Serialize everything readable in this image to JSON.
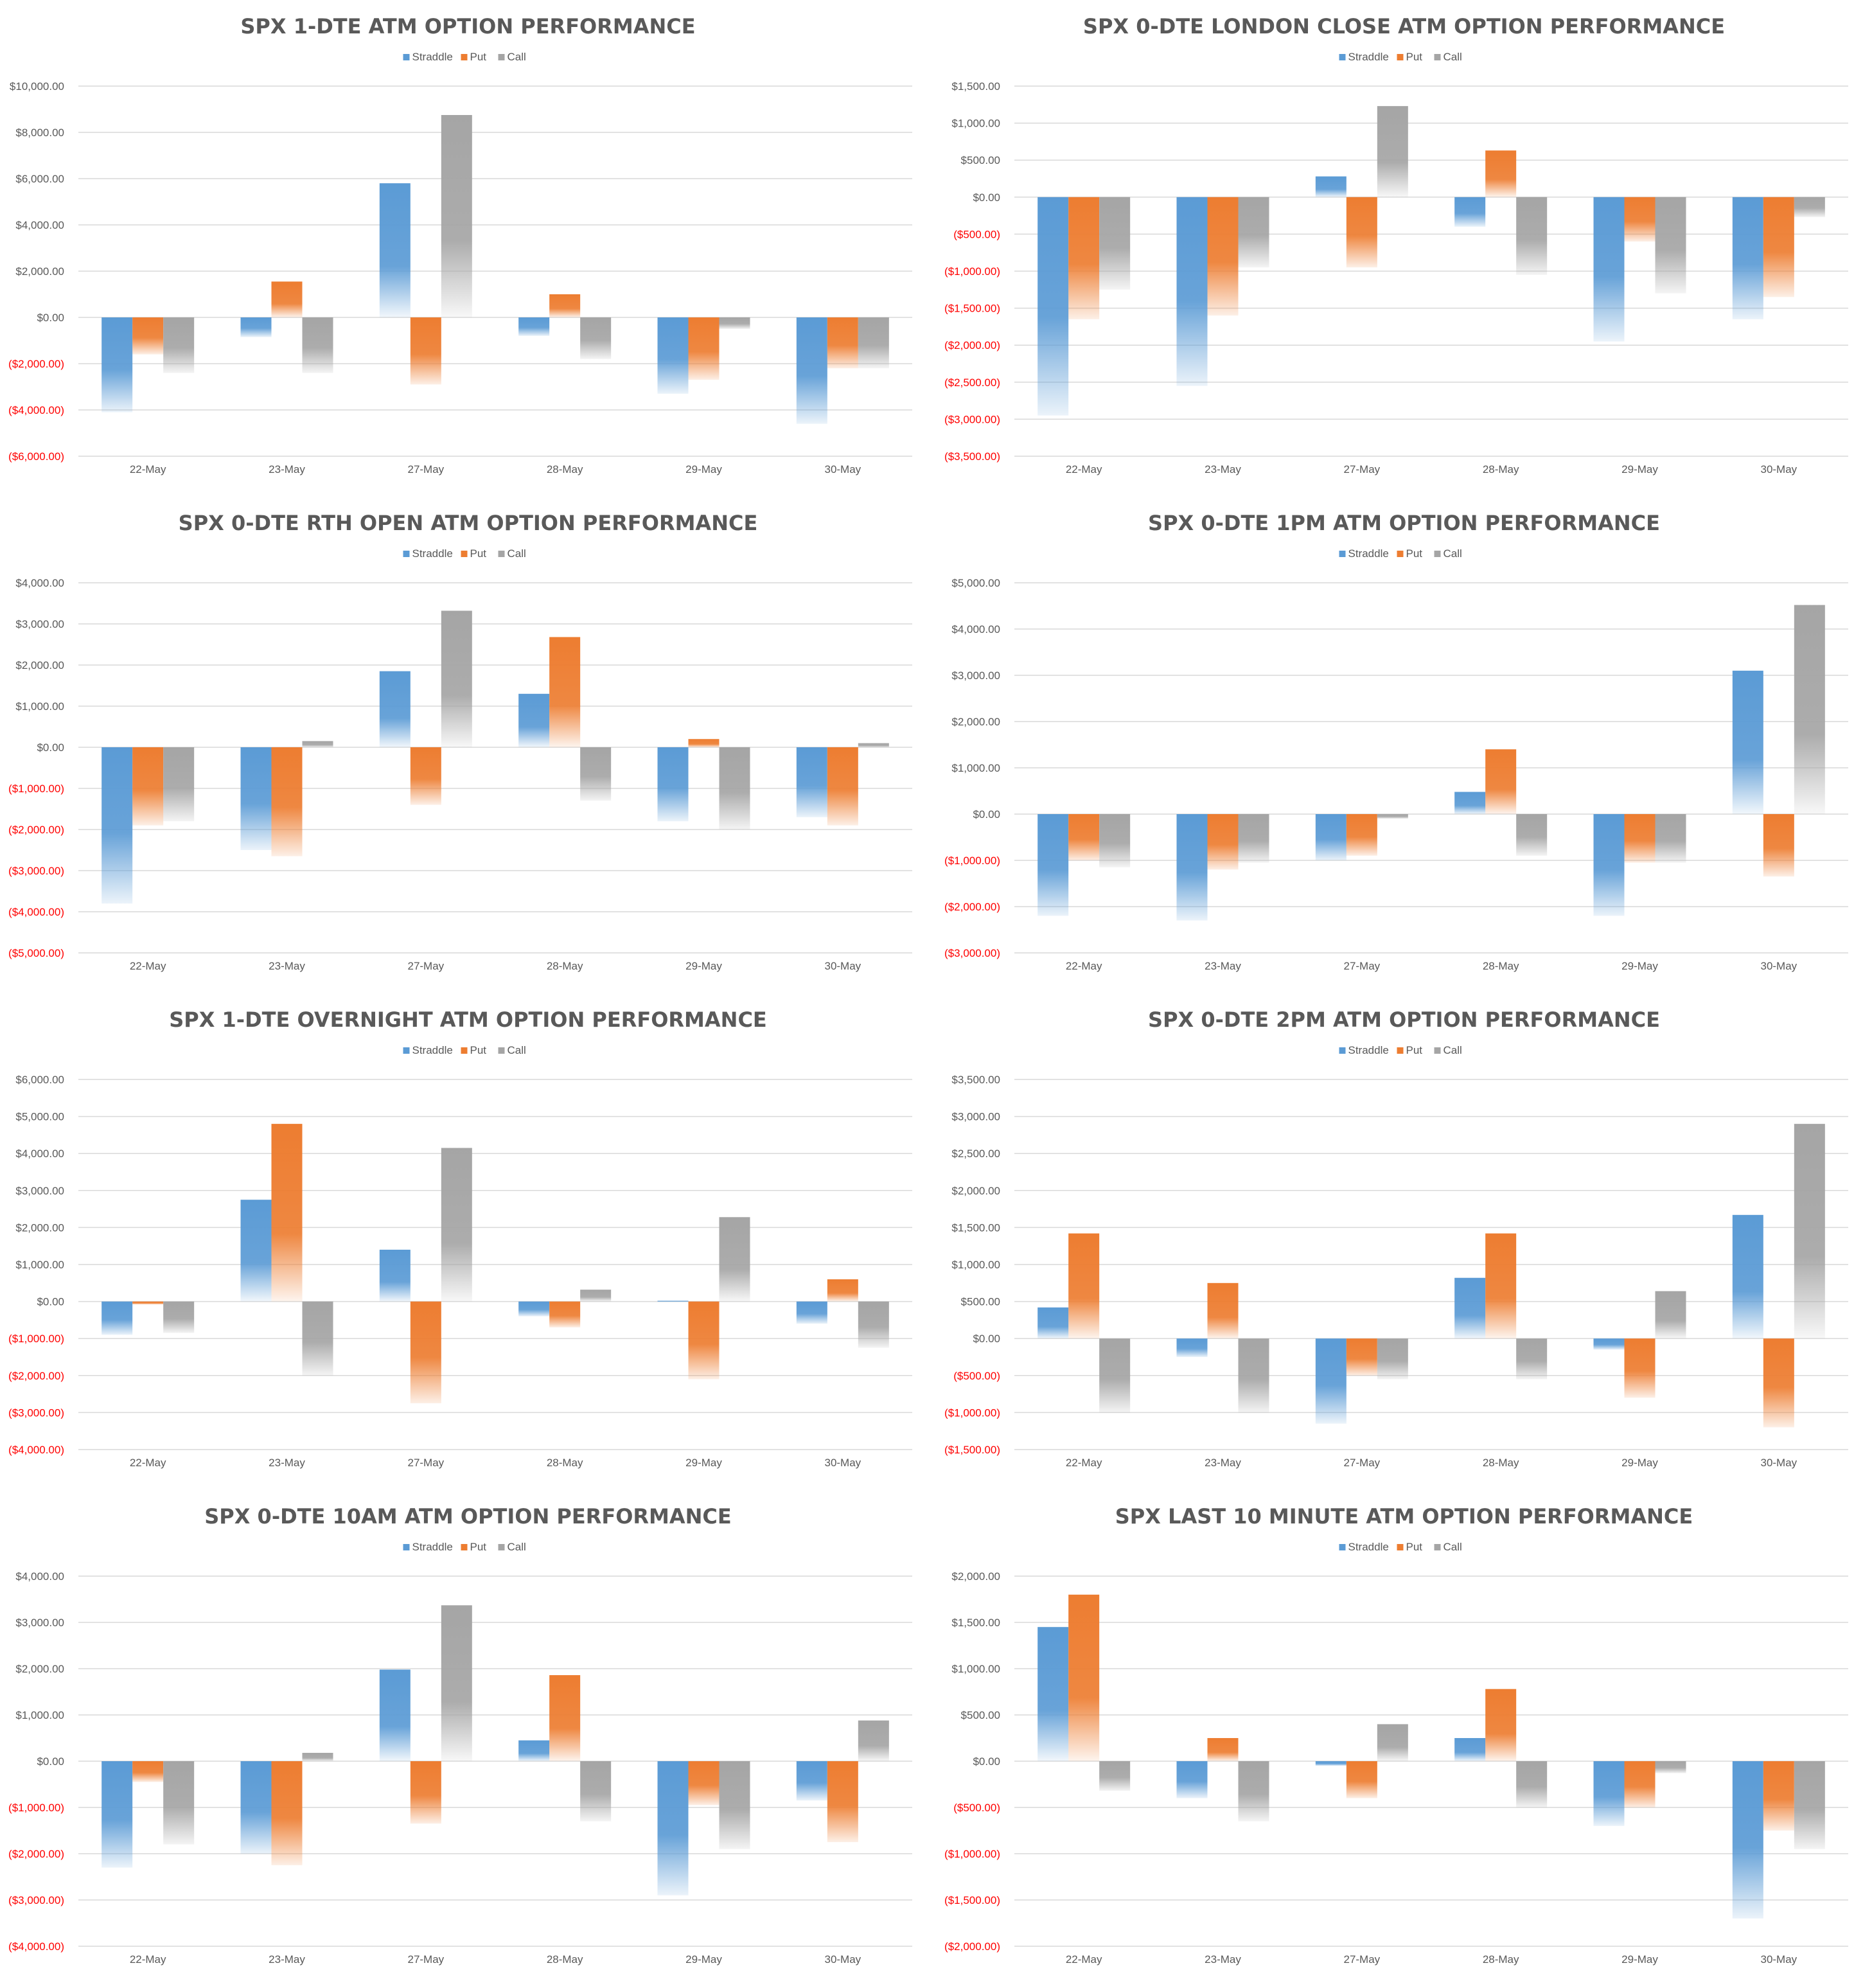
{
  "colors": {
    "straddle": "#5b9bd5",
    "put": "#ed7d31",
    "call": "#a5a5a5",
    "negative_label": "#ff0000",
    "positive_label": "#595959",
    "gridline": "#d9d9d9",
    "title": "#595959"
  },
  "chart_data": [
    {
      "type": "bar",
      "title": "SPX 1-DTE ATM OPTION PERFORMANCE",
      "categories": [
        "22-May",
        "23-May",
        "27-May",
        "28-May",
        "29-May",
        "30-May"
      ],
      "ylim": [
        -6000,
        10000
      ],
      "yticks": [
        -6000,
        -4000,
        -2000,
        0,
        2000,
        4000,
        6000,
        8000,
        10000
      ],
      "ytick_labels": [
        "($6,000.00)",
        "($4,000.00)",
        "($2,000.00)",
        "$0.00",
        "$2,000.00",
        "$4,000.00",
        "$6,000.00",
        "$8,000.00",
        "$10,000.00"
      ],
      "legend": [
        "Straddle",
        "Put",
        "Call"
      ],
      "legend_position": "top-center",
      "grid": true,
      "series": [
        {
          "name": "Straddle",
          "values": [
            -4100,
            -850,
            5800,
            -800,
            -3300,
            -4600
          ]
        },
        {
          "name": "Put",
          "values": [
            -1600,
            1550,
            -2900,
            1000,
            -2700,
            -2200
          ]
        },
        {
          "name": "Call",
          "values": [
            -2400,
            -2400,
            8750,
            -1800,
            -500,
            -2200
          ]
        }
      ]
    },
    {
      "type": "bar",
      "title": "SPX 0-DTE  LONDON CLOSE ATM OPTION PERFORMANCE",
      "categories": [
        "22-May",
        "23-May",
        "27-May",
        "28-May",
        "29-May",
        "30-May"
      ],
      "ylim": [
        -3500,
        1500
      ],
      "yticks": [
        -3500,
        -3000,
        -2500,
        -2000,
        -1500,
        -1000,
        -500,
        0,
        500,
        1000,
        1500
      ],
      "ytick_labels": [
        "($3,500.00)",
        "($3,000.00)",
        "($2,500.00)",
        "($2,000.00)",
        "($1,500.00)",
        "($1,000.00)",
        "($500.00)",
        "$0.00",
        "$500.00",
        "$1,000.00",
        "$1,500.00"
      ],
      "legend": [
        "Straddle",
        "Put",
        "Call"
      ],
      "legend_position": "top-center",
      "grid": true,
      "series": [
        {
          "name": "Straddle",
          "values": [
            -2950,
            -2550,
            280,
            -400,
            -1950,
            -1650
          ]
        },
        {
          "name": "Put",
          "values": [
            -1650,
            -1600,
            -950,
            630,
            -600,
            -1350
          ]
        },
        {
          "name": "Call",
          "values": [
            -1250,
            -950,
            1230,
            -1050,
            -1300,
            -270
          ]
        }
      ]
    },
    {
      "type": "bar",
      "title": "SPX 0-DTE RTH OPEN ATM OPTION PERFORMANCE",
      "categories": [
        "22-May",
        "23-May",
        "27-May",
        "28-May",
        "29-May",
        "30-May"
      ],
      "ylim": [
        -5000,
        4000
      ],
      "yticks": [
        -5000,
        -4000,
        -3000,
        -2000,
        -1000,
        0,
        1000,
        2000,
        3000,
        4000
      ],
      "ytick_labels": [
        "($5,000.00)",
        "($4,000.00)",
        "($3,000.00)",
        "($2,000.00)",
        "($1,000.00)",
        "$0.00",
        "$1,000.00",
        "$2,000.00",
        "$3,000.00",
        "$4,000.00"
      ],
      "legend": [
        "Straddle",
        "Put",
        "Call"
      ],
      "legend_position": "top-center",
      "grid": true,
      "series": [
        {
          "name": "Straddle",
          "values": [
            -3800,
            -2500,
            1850,
            1300,
            -1800,
            -1700
          ]
        },
        {
          "name": "Put",
          "values": [
            -1900,
            -2650,
            -1400,
            2680,
            200,
            -1900
          ]
        },
        {
          "name": "Call",
          "values": [
            -1800,
            150,
            3320,
            -1300,
            -2000,
            100
          ]
        }
      ]
    },
    {
      "type": "bar",
      "title": "SPX 0-DTE 1PM ATM OPTION PERFORMANCE",
      "categories": [
        "22-May",
        "23-May",
        "27-May",
        "28-May",
        "29-May",
        "30-May"
      ],
      "ylim": [
        -3000,
        5000
      ],
      "yticks": [
        -3000,
        -2000,
        -1000,
        0,
        1000,
        2000,
        3000,
        4000,
        5000
      ],
      "ytick_labels": [
        "($3,000.00)",
        "($2,000.00)",
        "($1,000.00)",
        "$0.00",
        "$1,000.00",
        "$2,000.00",
        "$3,000.00",
        "$4,000.00",
        "$5,000.00"
      ],
      "legend": [
        "Straddle",
        "Put",
        "Call"
      ],
      "legend_position": "top-center",
      "grid": true,
      "series": [
        {
          "name": "Straddle",
          "values": [
            -2200,
            -2300,
            -1000,
            480,
            -2200,
            3100
          ]
        },
        {
          "name": "Put",
          "values": [
            -1000,
            -1200,
            -900,
            1400,
            -1050,
            -1350
          ]
        },
        {
          "name": "Call",
          "values": [
            -1150,
            -1050,
            -100,
            -900,
            -1050,
            4520
          ]
        }
      ]
    },
    {
      "type": "bar",
      "title": "SPX 1-DTE OVERNIGHT ATM OPTION PERFORMANCE",
      "categories": [
        "22-May",
        "23-May",
        "27-May",
        "28-May",
        "29-May",
        "30-May"
      ],
      "ylim": [
        -4000,
        6000
      ],
      "yticks": [
        -4000,
        -3000,
        -2000,
        -1000,
        0,
        1000,
        2000,
        3000,
        4000,
        5000,
        6000
      ],
      "ytick_labels": [
        "($4,000.00)",
        "($3,000.00)",
        "($2,000.00)",
        "($1,000.00)",
        "$0.00",
        "$1,000.00",
        "$2,000.00",
        "$3,000.00",
        "$4,000.00",
        "$5,000.00",
        "$6,000.00"
      ],
      "legend": [
        "Straddle",
        "Put",
        "Call"
      ],
      "legend_position": "top-center",
      "grid": true,
      "series": [
        {
          "name": "Straddle",
          "values": [
            -900,
            2750,
            1400,
            -400,
            20,
            -600
          ]
        },
        {
          "name": "Put",
          "values": [
            -80,
            4800,
            -2750,
            -700,
            -2100,
            600
          ]
        },
        {
          "name": "Call",
          "values": [
            -850,
            -2000,
            4150,
            320,
            2280,
            -1250
          ]
        }
      ]
    },
    {
      "type": "bar",
      "title": "SPX 0-DTE 2PM ATM OPTION PERFORMANCE",
      "categories": [
        "22-May",
        "23-May",
        "27-May",
        "28-May",
        "29-May",
        "30-May"
      ],
      "ylim": [
        -1500,
        3500
      ],
      "yticks": [
        -1500,
        -1000,
        -500,
        0,
        500,
        1000,
        1500,
        2000,
        2500,
        3000,
        3500
      ],
      "ytick_labels": [
        "($1,500.00)",
        "($1,000.00)",
        "($500.00)",
        "$0.00",
        "$500.00",
        "$1,000.00",
        "$1,500.00",
        "$2,000.00",
        "$2,500.00",
        "$3,000.00",
        "$3,500.00"
      ],
      "legend": [
        "Straddle",
        "Put",
        "Call"
      ],
      "legend_position": "top-center",
      "grid": true,
      "series": [
        {
          "name": "Straddle",
          "values": [
            420,
            -250,
            -1150,
            820,
            -150,
            1670
          ]
        },
        {
          "name": "Put",
          "values": [
            1420,
            750,
            -500,
            1420,
            -800,
            -1200
          ]
        },
        {
          "name": "Call",
          "values": [
            -1000,
            -1000,
            -550,
            -550,
            640,
            2900
          ]
        }
      ]
    },
    {
      "type": "bar",
      "title": "SPX 0-DTE 10AM ATM OPTION PERFORMANCE",
      "categories": [
        "22-May",
        "23-May",
        "27-May",
        "28-May",
        "29-May",
        "30-May"
      ],
      "ylim": [
        -4000,
        4000
      ],
      "yticks": [
        -4000,
        -3000,
        -2000,
        -1000,
        0,
        1000,
        2000,
        3000,
        4000
      ],
      "ytick_labels": [
        "($4,000.00)",
        "($3,000.00)",
        "($2,000.00)",
        "($1,000.00)",
        "$0.00",
        "$1,000.00",
        "$2,000.00",
        "$3,000.00",
        "$4,000.00"
      ],
      "legend": [
        "Straddle",
        "Put",
        "Call"
      ],
      "legend_position": "top-center",
      "grid": true,
      "series": [
        {
          "name": "Straddle",
          "values": [
            -2300,
            -2000,
            1980,
            450,
            -2900,
            -850
          ]
        },
        {
          "name": "Put",
          "values": [
            -450,
            -2250,
            -1350,
            1860,
            -950,
            -1750
          ]
        },
        {
          "name": "Call",
          "values": [
            -1800,
            180,
            3370,
            -1300,
            -1900,
            880
          ]
        }
      ]
    },
    {
      "type": "bar",
      "title": "SPX LAST 10 MINUTE ATM OPTION PERFORMANCE",
      "categories": [
        "22-May",
        "23-May",
        "27-May",
        "28-May",
        "29-May",
        "30-May"
      ],
      "ylim": [
        -2000,
        2000
      ],
      "yticks": [
        -2000,
        -1500,
        -1000,
        -500,
        0,
        500,
        1000,
        1500,
        2000
      ],
      "ytick_labels": [
        "($2,000.00)",
        "($1,500.00)",
        "($1,000.00)",
        "($500.00)",
        "$0.00",
        "$500.00",
        "$1,000.00",
        "$1,500.00",
        "$2,000.00"
      ],
      "legend": [
        "Straddle",
        "Put",
        "Call"
      ],
      "legend_position": "top-center",
      "grid": true,
      "series": [
        {
          "name": "Straddle",
          "values": [
            1450,
            -400,
            -50,
            250,
            -700,
            -1700
          ]
        },
        {
          "name": "Put",
          "values": [
            1800,
            250,
            -400,
            780,
            -500,
            -750
          ]
        },
        {
          "name": "Call",
          "values": [
            -320,
            -650,
            400,
            -500,
            -130,
            -950
          ]
        }
      ]
    }
  ]
}
